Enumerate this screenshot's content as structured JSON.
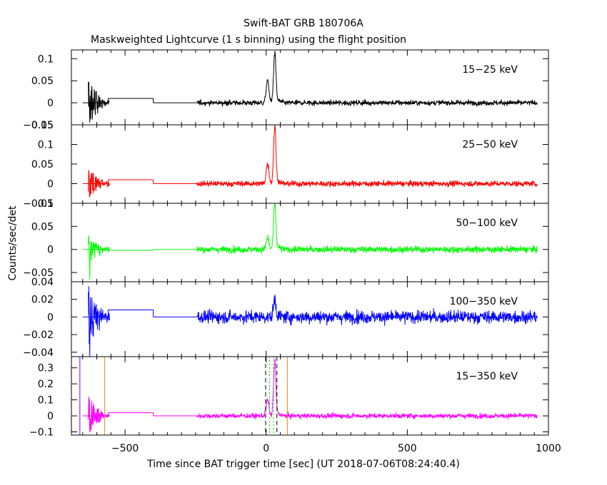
{
  "header": {
    "title": "Swift-BAT GRB 180706A",
    "subtitle": "Maskweighted Lightcurve (1 s binning) using the flight position"
  },
  "axes": {
    "xlabel": "Time since BAT trigger time [sec] (UT 2018-07-06T08:24:40.4)",
    "ylabel": "Counts/sec/det"
  },
  "chart_data": {
    "type": "line",
    "title": "Swift-BAT GRB 180706A",
    "subtitle": "Maskweighted Lightcurve (1 s binning) using the flight position",
    "xlabel": "Time since BAT trigger time [sec] (UT 2018-07-06T08:24:40.4)",
    "ylabel": "Counts/sec/det",
    "xlim": [
      -690,
      1000
    ],
    "x_ticks": [
      -500,
      0,
      500,
      1000
    ],
    "x_tick_labels": [
      "−500",
      "0",
      "500",
      "1000"
    ],
    "grid": false,
    "panels": [
      {
        "name": "15–25 keV",
        "label": "15−25 keV",
        "color": "#000000",
        "ylim": [
          -0.05,
          0.12
        ],
        "y_ticks": [
          -0.05,
          0,
          0.05,
          0.1
        ],
        "y_tick_labels": [
          "−0.05",
          "0",
          "0.05",
          "0.1"
        ],
        "baseline_segments": [
          {
            "x0": -650,
            "x1": -560,
            "y": 0.0
          },
          {
            "x0": -560,
            "x1": -400,
            "y": 0.01
          },
          {
            "x0": -400,
            "x1": -245,
            "y": 0.0
          }
        ],
        "noisy_intervals": [
          [
            -630,
            -555
          ],
          [
            -245,
            960
          ]
        ],
        "noise_sigma": 0.005,
        "pre_spike": {
          "x": -628,
          "y": 0.048,
          "min": -0.045
        },
        "peaks": [
          {
            "x": 30,
            "y": 0.11
          },
          {
            "x": 5,
            "y": 0.05
          }
        ]
      },
      {
        "name": "25–50 keV",
        "label": "25−50 keV",
        "color": "#ff0000",
        "ylim": [
          -0.05,
          0.15
        ],
        "y_ticks": [
          -0.05,
          0,
          0.05,
          0.1,
          0.15
        ],
        "y_tick_labels": [
          "−0.05",
          "0",
          "0.05",
          "0.1",
          "0.15"
        ],
        "baseline_segments": [
          {
            "x0": -650,
            "x1": -560,
            "y": 0.0
          },
          {
            "x0": -560,
            "x1": -400,
            "y": 0.01
          },
          {
            "x0": -400,
            "x1": -245,
            "y": 0.0
          }
        ],
        "noisy_intervals": [
          [
            -630,
            -555
          ],
          [
            -245,
            960
          ]
        ],
        "noise_sigma": 0.006,
        "pre_spike": {
          "x": -628,
          "y": 0.035,
          "min": -0.03
        },
        "peaks": [
          {
            "x": 30,
            "y": 0.14
          },
          {
            "x": 5,
            "y": 0.05
          }
        ]
      },
      {
        "name": "50–100 keV",
        "label": "50−100 keV",
        "color": "#00ff00",
        "ylim": [
          -0.07,
          0.1
        ],
        "y_ticks": [
          -0.05,
          0,
          0.05,
          0.1
        ],
        "y_tick_labels": [
          "−0.05",
          "0",
          "0.05",
          "0.1"
        ],
        "baseline_segments": [
          {
            "x0": -650,
            "x1": -560,
            "y": 0.0
          },
          {
            "x0": -560,
            "x1": -400,
            "y": -0.002
          },
          {
            "x0": -400,
            "x1": -245,
            "y": 0.0
          }
        ],
        "noisy_intervals": [
          [
            -630,
            -555
          ],
          [
            -245,
            960
          ]
        ],
        "noise_sigma": 0.006,
        "pre_spike": {
          "x": -628,
          "y": 0.03,
          "min": -0.065
        },
        "peaks": [
          {
            "x": 30,
            "y": 0.095
          },
          {
            "x": 5,
            "y": 0.025
          }
        ]
      },
      {
        "name": "100–350 keV",
        "label": "100−350 keV",
        "color": "#0000ff",
        "ylim": [
          -0.045,
          0.04
        ],
        "y_ticks": [
          -0.04,
          -0.02,
          0,
          0.02,
          0.04
        ],
        "y_tick_labels": [
          "−0.04",
          "−0.02",
          "0",
          "0.02",
          "0.04"
        ],
        "baseline_segments": [
          {
            "x0": -650,
            "x1": -560,
            "y": 0.0
          },
          {
            "x0": -560,
            "x1": -400,
            "y": 0.008
          },
          {
            "x0": -400,
            "x1": -245,
            "y": 0.0
          }
        ],
        "noisy_intervals": [
          [
            -630,
            -555
          ],
          [
            -245,
            960
          ]
        ],
        "noise_sigma": 0.006,
        "pre_spike": {
          "x": -628,
          "y": 0.035,
          "min": -0.045
        },
        "peaks": [
          {
            "x": 30,
            "y": 0.02
          }
        ]
      },
      {
        "name": "15–350 keV",
        "label": "15−350 keV",
        "color": "#ff00ff",
        "ylim": [
          -0.12,
          0.37
        ],
        "y_ticks": [
          -0.1,
          0,
          0.1,
          0.2,
          0.3
        ],
        "y_tick_labels": [
          "−0.1",
          "0",
          "0.1",
          "0.2",
          "0.3"
        ],
        "baseline_segments": [
          {
            "x0": -650,
            "x1": -560,
            "y": 0.0
          },
          {
            "x0": -560,
            "x1": -400,
            "y": 0.02
          },
          {
            "x0": -400,
            "x1": -245,
            "y": 0.0
          }
        ],
        "noisy_intervals": [
          [
            -630,
            -555
          ],
          [
            -245,
            960
          ]
        ],
        "noise_sigma": 0.013,
        "pre_spike": {
          "x": -628,
          "y": 0.12,
          "min": -0.1
        },
        "peaks": [
          {
            "x": 30,
            "y": 0.32
          },
          {
            "x": 5,
            "y": 0.1
          }
        ],
        "markers": [
          {
            "x": -660,
            "color": "#8000ff",
            "style": "solid"
          },
          {
            "x": -572,
            "color": "#ff8000",
            "style": "solid"
          },
          {
            "x": 75,
            "color": "#ff8000",
            "style": "solid"
          },
          {
            "x": -2,
            "color": "#000000",
            "style": "dashed"
          },
          {
            "x": 38,
            "color": "#000000",
            "style": "dashed"
          },
          {
            "x": 12,
            "color": "#00cc00",
            "style": "dotted"
          },
          {
            "x": 26,
            "color": "#00cc00",
            "style": "dotted"
          }
        ]
      }
    ]
  }
}
